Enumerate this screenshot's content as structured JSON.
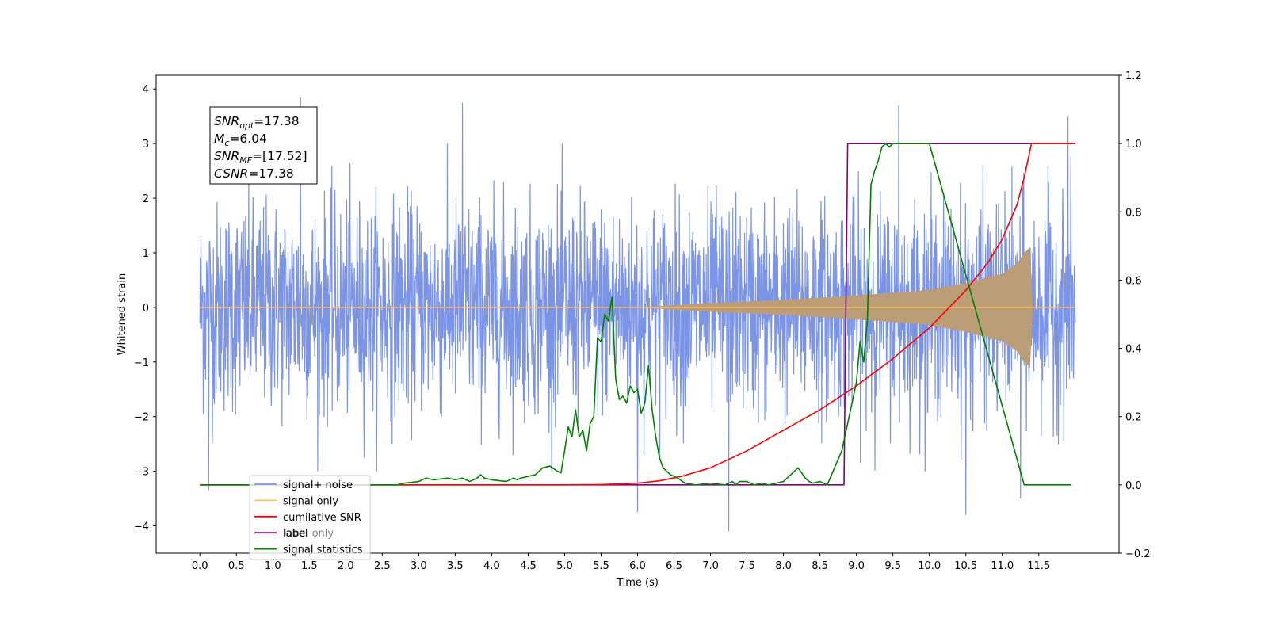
{
  "chart_data": {
    "type": "line",
    "xlabel": "Time (s)",
    "ylabel": "Whitened strain",
    "xlim": [
      -0.6,
      12.6
    ],
    "ylim": [
      -4.5,
      4.25
    ],
    "y2lim": [
      -0.2,
      1.2
    ],
    "xticks": [
      "0.0",
      "0.5",
      "1.0",
      "1.5",
      "2.0",
      "2.5",
      "3.0",
      "3.5",
      "4.0",
      "4.5",
      "5.0",
      "5.5",
      "6.0",
      "6.5",
      "7.0",
      "7.5",
      "8.0",
      "8.5",
      "9.0",
      "9.5",
      "10.0",
      "10.5",
      "11.0",
      "11.5"
    ],
    "yticks": [
      "−4",
      "−3",
      "−2",
      "−1",
      "0",
      "1",
      "2",
      "3",
      "4"
    ],
    "y2ticks": [
      "−0.2",
      "0.0",
      "0.2",
      "0.4",
      "0.6",
      "0.8",
      "1.0",
      "1.2"
    ],
    "annotation": {
      "lines": [
        {
          "sym": "SNR",
          "sub": "opt",
          "value": "=17.38"
        },
        {
          "sym": "M",
          "sub": "c",
          "value": "=6.04"
        },
        {
          "sym": "SNR",
          "sub": "MF",
          "value": "=[17.52]"
        },
        {
          "sym": "CSNR",
          "sub": "",
          "value": "=17.38"
        }
      ]
    },
    "legend": {
      "position": "lower-left",
      "entries": [
        {
          "label": "signal+ noise",
          "color": "#7b94e6"
        },
        {
          "label": "signal only",
          "color": "#ffbf66"
        },
        {
          "label": "cumilative SNR",
          "color": "#ff0000"
        },
        {
          "label": "label",
          "color": "#800080"
        },
        {
          "label": "signal statistics",
          "color": "#008000"
        }
      ],
      "hidden_overlap_label": "label only"
    },
    "series": [
      {
        "name": "signal+ noise",
        "axis": "left",
        "color": "#7b94e6",
        "description": "whitened noise, roughly ±2.5 with spikes up to ±3.8",
        "x_range": [
          0.0,
          12.0
        ],
        "envelope": 2.5,
        "peaks": [
          {
            "x": 1.38,
            "y": 3.85
          },
          {
            "x": 3.6,
            "y": 3.75
          },
          {
            "x": 9.58,
            "y": 3.7
          },
          {
            "x": 11.9,
            "y": 3.5
          },
          {
            "x": 7.25,
            "y": -4.1
          },
          {
            "x": 10.5,
            "y": -3.8
          },
          {
            "x": 6.0,
            "y": -3.75
          },
          {
            "x": 11.25,
            "y": -3.5
          },
          {
            "x": 0.12,
            "y": -3.35
          }
        ]
      },
      {
        "name": "signal only",
        "axis": "left",
        "color": "#ffbf66",
        "description": "chirp amplitude growing from 0 at ~6.0 s to ~1.1 at 11.4 s, then 0",
        "amplitude_points": [
          [
            6.0,
            0.0
          ],
          [
            7.0,
            0.08
          ],
          [
            8.0,
            0.14
          ],
          [
            9.0,
            0.22
          ],
          [
            10.0,
            0.32
          ],
          [
            10.5,
            0.45
          ],
          [
            11.0,
            0.62
          ],
          [
            11.2,
            0.8
          ],
          [
            11.3,
            1.0
          ],
          [
            11.38,
            1.1
          ],
          [
            11.42,
            0.0
          ],
          [
            12.0,
            0.0
          ]
        ]
      },
      {
        "name": "cumilative SNR",
        "axis": "right",
        "color": "#ff0000",
        "x": [
          0.0,
          5.0,
          5.5,
          6.0,
          6.3,
          6.6,
          7.0,
          7.5,
          8.0,
          8.5,
          9.0,
          9.5,
          10.0,
          10.5,
          10.8,
          11.0,
          11.2,
          11.3,
          11.38,
          11.4,
          12.0
        ],
        "y": [
          0.0,
          0.0,
          0.001,
          0.005,
          0.012,
          0.025,
          0.05,
          0.1,
          0.16,
          0.22,
          0.29,
          0.37,
          0.46,
          0.57,
          0.65,
          0.72,
          0.82,
          0.9,
          0.98,
          1.0,
          1.0
        ]
      },
      {
        "name": "label",
        "axis": "right",
        "color": "#800080",
        "x": [
          0.0,
          8.83,
          8.88,
          11.38,
          11.42,
          12.0
        ],
        "y": [
          0.0,
          0.0,
          1.0,
          1.0,
          1.0,
          1.0
        ]
      },
      {
        "name": "signal statistics",
        "axis": "right",
        "color": "#008000",
        "x": [
          0.0,
          2.7,
          2.8,
          3.0,
          3.1,
          3.2,
          3.4,
          3.5,
          3.6,
          3.7,
          3.8,
          3.85,
          3.9,
          4.0,
          4.2,
          4.3,
          4.35,
          4.4,
          4.6,
          4.7,
          4.8,
          4.9,
          4.95,
          5.0,
          5.05,
          5.1,
          5.15,
          5.2,
          5.25,
          5.3,
          5.35,
          5.4,
          5.45,
          5.5,
          5.55,
          5.6,
          5.65,
          5.7,
          5.75,
          5.8,
          5.85,
          5.9,
          5.95,
          6.0,
          6.05,
          6.1,
          6.15,
          6.2,
          6.25,
          6.3,
          6.35,
          6.45,
          6.55,
          6.65,
          6.8,
          7.0,
          7.2,
          7.3,
          7.35,
          7.4,
          7.5,
          7.6,
          7.7,
          7.8,
          8.0,
          8.2,
          8.3,
          8.35,
          8.4,
          8.5,
          8.6,
          8.7,
          8.8,
          8.9,
          9.0,
          9.05,
          9.1,
          9.15,
          9.2,
          9.25,
          9.3,
          9.35,
          9.4,
          9.45,
          9.5,
          9.55,
          9.6,
          9.7,
          9.8,
          10.0,
          11.3,
          11.35,
          11.4,
          11.45,
          11.5,
          11.95
        ],
        "y": [
          0.0,
          0.0,
          0.005,
          0.01,
          0.02,
          0.015,
          0.02,
          0.015,
          0.02,
          0.01,
          0.02,
          0.03,
          0.02,
          0.015,
          0.01,
          0.02,
          0.015,
          0.02,
          0.03,
          0.05,
          0.055,
          0.04,
          0.035,
          0.1,
          0.17,
          0.14,
          0.22,
          0.14,
          0.16,
          0.1,
          0.18,
          0.2,
          0.43,
          0.42,
          0.5,
          0.48,
          0.55,
          0.31,
          0.25,
          0.26,
          0.24,
          0.29,
          0.27,
          0.28,
          0.21,
          0.24,
          0.35,
          0.22,
          0.14,
          0.08,
          0.05,
          0.03,
          0.02,
          0.005,
          0.0,
          0.005,
          0.0,
          0.01,
          0.0,
          0.01,
          0.01,
          0.0,
          0.005,
          0.0,
          0.01,
          0.05,
          0.02,
          0.01,
          0.005,
          0.01,
          0.0,
          0.05,
          0.1,
          0.2,
          0.3,
          0.42,
          0.36,
          0.48,
          0.88,
          0.92,
          0.95,
          0.99,
          1.0,
          0.99,
          1.0,
          1.0,
          1.0,
          1.0,
          1.0,
          1.0,
          0.0,
          0.0,
          0.0,
          0.0,
          0.0,
          0.0
        ]
      }
    ]
  }
}
